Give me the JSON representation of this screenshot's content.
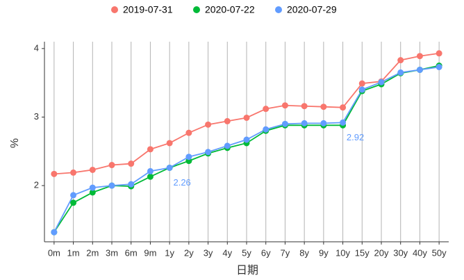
{
  "chart_data": {
    "type": "line",
    "x_label": "日期",
    "y_label": "%",
    "categories": [
      "0m",
      "1m",
      "2m",
      "3m",
      "6m",
      "9m",
      "1y",
      "2y",
      "3y",
      "4y",
      "5y",
      "6y",
      "7y",
      "8y",
      "9y",
      "10y",
      "15y",
      "20y",
      "30y",
      "40y",
      "50y"
    ],
    "series": [
      {
        "name": "2019-07-31",
        "color": "#F8766D",
        "values": [
          2.17,
          2.19,
          2.23,
          2.3,
          2.32,
          2.53,
          2.62,
          2.77,
          2.89,
          2.94,
          2.99,
          3.12,
          3.17,
          3.16,
          3.15,
          3.14,
          3.49,
          3.52,
          3.83,
          3.89,
          3.93
        ]
      },
      {
        "name": "2020-07-22",
        "color": "#00BA38",
        "values": [
          1.32,
          1.75,
          1.9,
          2.0,
          1.99,
          2.13,
          2.26,
          2.36,
          2.47,
          2.55,
          2.62,
          2.8,
          2.88,
          2.88,
          2.88,
          2.88,
          3.38,
          3.48,
          3.64,
          3.69,
          3.75
        ]
      },
      {
        "name": "2020-07-29",
        "color": "#619CFF",
        "values": [
          1.32,
          1.86,
          1.97,
          2.0,
          2.02,
          2.21,
          2.26,
          2.42,
          2.49,
          2.58,
          2.67,
          2.82,
          2.9,
          2.91,
          2.91,
          2.92,
          3.4,
          3.51,
          3.65,
          3.69,
          3.73
        ],
        "value_labels": [
          null,
          null,
          null,
          null,
          null,
          null,
          "2.26",
          null,
          null,
          null,
          null,
          null,
          null,
          null,
          null,
          "2.92",
          null,
          null,
          null,
          null,
          null
        ]
      }
    ],
    "ylim": [
      1.18,
      4.1
    ],
    "yticks": [
      2,
      3,
      4
    ],
    "xgrid": true,
    "legend": "top"
  }
}
